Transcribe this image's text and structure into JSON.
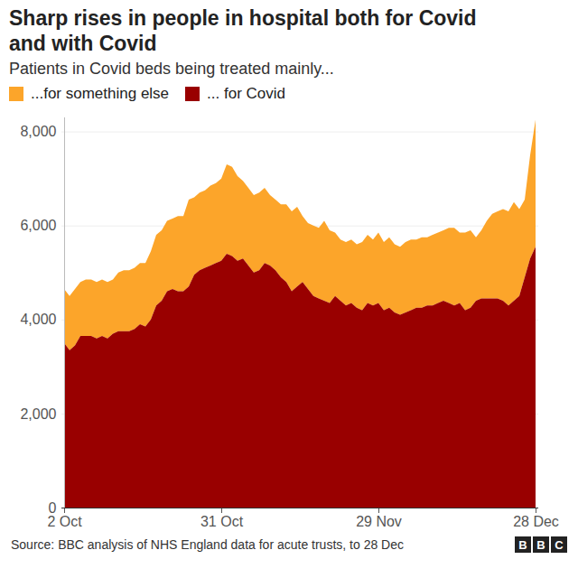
{
  "chart_data": {
    "type": "area",
    "title": "Sharp rises in people in hospital both for Covid and with Covid",
    "subtitle": "Patients in Covid beds being treated mainly...",
    "source": "Source: BBC analysis of NHS England data for acute trusts, to 28 Dec",
    "logo": "BBC",
    "stacked": true,
    "grid": true,
    "categories": [
      "2 Oct",
      null,
      null,
      null,
      null,
      null,
      null,
      null,
      null,
      null,
      null,
      null,
      null,
      null,
      null,
      null,
      null,
      null,
      null,
      null,
      null,
      null,
      null,
      null,
      null,
      null,
      null,
      null,
      null,
      "31 Oct",
      null,
      null,
      null,
      null,
      null,
      null,
      null,
      null,
      null,
      null,
      null,
      null,
      null,
      null,
      null,
      null,
      null,
      null,
      null,
      null,
      null,
      null,
      null,
      null,
      null,
      null,
      null,
      null,
      "29 Nov",
      null,
      null,
      null,
      null,
      null,
      null,
      null,
      null,
      null,
      null,
      null,
      null,
      null,
      null,
      null,
      null,
      null,
      null,
      null,
      null,
      null,
      null,
      null,
      null,
      null,
      null,
      null,
      null,
      "28 Dec"
    ],
    "series": [
      {
        "name": "...for something else",
        "color": "#fca52a",
        "values": [
          1150,
          1150,
          1200,
          1150,
          1200,
          1200,
          1200,
          1200,
          1200,
          1150,
          1250,
          1300,
          1300,
          1300,
          1300,
          1350,
          1450,
          1500,
          1500,
          1500,
          1500,
          1600,
          1600,
          1850,
          1650,
          1650,
          1650,
          1700,
          1700,
          1750,
          1900,
          1900,
          1800,
          1650,
          1650,
          1650,
          1650,
          1600,
          1500,
          1500,
          1550,
          1650,
          1700,
          1700,
          1400,
          1400,
          1500,
          1500,
          1700,
          1550,
          1350,
          1300,
          1350,
          1350,
          1350,
          1450,
          1450,
          1400,
          1500,
          1450,
          1500,
          1450,
          1450,
          1500,
          1500,
          1450,
          1500,
          1450,
          1500,
          1500,
          1500,
          1600,
          1650,
          1500,
          1650,
          1650,
          1350,
          1450,
          1650,
          1800,
          1850,
          1950,
          2000,
          2100,
          1850,
          1650,
          2200,
          2700
        ]
      },
      {
        "name": "... for Covid",
        "color": "#990000",
        "values": [
          3500,
          3350,
          3450,
          3650,
          3650,
          3650,
          3600,
          3650,
          3600,
          3700,
          3750,
          3750,
          3750,
          3800,
          3900,
          3850,
          4000,
          4300,
          4400,
          4600,
          4650,
          4600,
          4600,
          4700,
          4950,
          5050,
          5100,
          5150,
          5200,
          5250,
          5400,
          5350,
          5250,
          5300,
          5150,
          5000,
          5050,
          5200,
          5150,
          5050,
          4900,
          4800,
          4600,
          4700,
          4800,
          4650,
          4500,
          4450,
          4400,
          4350,
          4500,
          4400,
          4300,
          4350,
          4250,
          4200,
          4350,
          4300,
          4350,
          4200,
          4250,
          4150,
          4100,
          4150,
          4200,
          4250,
          4250,
          4300,
          4300,
          4350,
          4400,
          4350,
          4300,
          4350,
          4200,
          4250,
          4400,
          4450,
          4450,
          4450,
          4450,
          4400,
          4300,
          4400,
          4500,
          4900,
          5300,
          5550
        ]
      }
    ],
    "ylim": [
      0,
      8300
    ],
    "yticks": [
      0,
      2000,
      4000,
      6000,
      8000
    ]
  }
}
